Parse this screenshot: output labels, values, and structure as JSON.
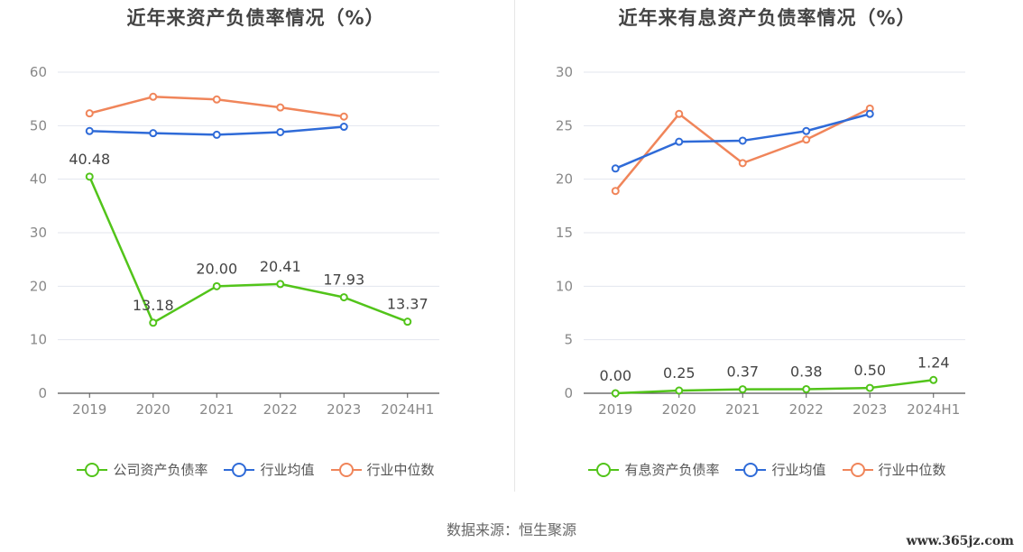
{
  "source": "数据来源：恒生聚源",
  "watermark": "www.365jz.com",
  "chart_data": [
    {
      "type": "line",
      "title": "近年来资产负债率情况（%）",
      "categories": [
        "2019",
        "2020",
        "2021",
        "2022",
        "2023",
        "2024H1"
      ],
      "ylim": [
        0,
        60
      ],
      "yticks": [
        0,
        10,
        20,
        30,
        40,
        50,
        60
      ],
      "grid": true,
      "legend_position": "bottom",
      "series": [
        {
          "name": "公司资产负债率",
          "color": "#52c41a",
          "values": [
            40.48,
            13.18,
            20.0,
            20.41,
            17.93,
            13.37
          ],
          "labels": [
            "40.48",
            "13.18",
            "20.00",
            "20.41",
            "17.93",
            "13.37"
          ]
        },
        {
          "name": "行业均值",
          "color": "#2f6bd8",
          "values": [
            49.0,
            48.6,
            48.3,
            48.8,
            49.8,
            null
          ]
        },
        {
          "name": "行业中位数",
          "color": "#f0855a",
          "values": [
            52.3,
            55.4,
            54.9,
            53.4,
            51.7,
            null
          ]
        }
      ]
    },
    {
      "type": "line",
      "title": "近年来有息资产负债率情况（%）",
      "categories": [
        "2019",
        "2020",
        "2021",
        "2022",
        "2023",
        "2024H1"
      ],
      "ylim": [
        0,
        30
      ],
      "yticks": [
        0,
        5,
        10,
        15,
        20,
        25,
        30
      ],
      "grid": true,
      "legend_position": "bottom",
      "series": [
        {
          "name": "有息资产负债率",
          "color": "#52c41a",
          "values": [
            0.0,
            0.25,
            0.37,
            0.38,
            0.5,
            1.24
          ],
          "labels": [
            "0.00",
            "0.25",
            "0.37",
            "0.38",
            "0.50",
            "1.24"
          ]
        },
        {
          "name": "行业均值",
          "color": "#2f6bd8",
          "values": [
            21.0,
            23.5,
            23.6,
            24.5,
            26.1,
            null
          ]
        },
        {
          "name": "行业中位数",
          "color": "#f0855a",
          "values": [
            18.9,
            26.1,
            21.5,
            23.7,
            26.6,
            null
          ]
        }
      ]
    }
  ]
}
